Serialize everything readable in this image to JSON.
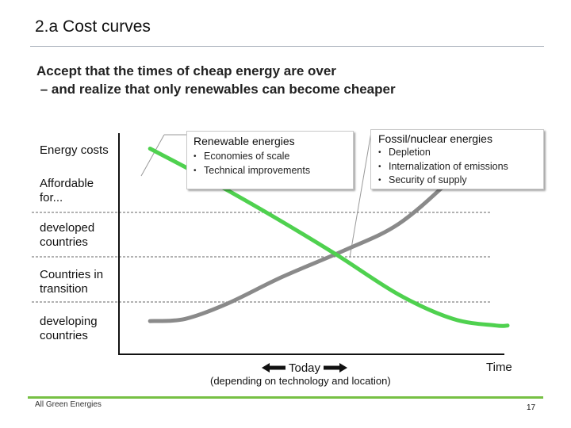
{
  "slide": {
    "title": "2.a Cost curves",
    "subtitle_line1": "Accept that the times of cheap energy are over",
    "subtitle_line2": " – and realize that only renewables can become cheaper",
    "footer_brand": "All Green Energies",
    "page_number": "17"
  },
  "colors": {
    "renewable": "#4fd14f",
    "fossil": "#8a8a8a",
    "footer_rule": "#76c043"
  },
  "chart_data": {
    "type": "line",
    "ylabel": "Energy costs",
    "xlabel": "Time",
    "x_marker": "Today",
    "x_note": "(depending on technology and location)",
    "row_header": "Affordable for...",
    "bands": [
      "developed countries",
      "Countries in transition",
      "developing countries"
    ],
    "series": [
      {
        "name": "Renewable energies",
        "color": "#4fd14f",
        "trend": "decreasing",
        "points": [
          [
            0.08,
            0.93
          ],
          [
            0.22,
            0.8
          ],
          [
            0.4,
            0.62
          ],
          [
            0.56,
            0.45
          ],
          [
            0.72,
            0.27
          ],
          [
            0.86,
            0.16
          ],
          [
            0.97,
            0.13
          ],
          [
            1.0,
            0.13
          ]
        ]
      },
      {
        "name": "Fossil/nuclear energies",
        "color": "#8a8a8a",
        "trend": "increasing",
        "points": [
          [
            0.08,
            0.15
          ],
          [
            0.17,
            0.16
          ],
          [
            0.28,
            0.23
          ],
          [
            0.42,
            0.35
          ],
          [
            0.58,
            0.47
          ],
          [
            0.72,
            0.59
          ],
          [
            0.86,
            0.8
          ],
          [
            0.97,
            0.99
          ]
        ]
      }
    ],
    "callouts": [
      {
        "series": "Renewable energies",
        "title": "Renewable energies",
        "bullets": [
          "Economies of scale",
          "Technical improvements"
        ]
      },
      {
        "series": "Fossil/nuclear energies",
        "title": "Fossil/nuclear energies",
        "bullets": [
          "Depletion",
          "Internalization of emissions",
          "Security of supply"
        ]
      }
    ],
    "grid": "dashed horizontal band lines"
  }
}
